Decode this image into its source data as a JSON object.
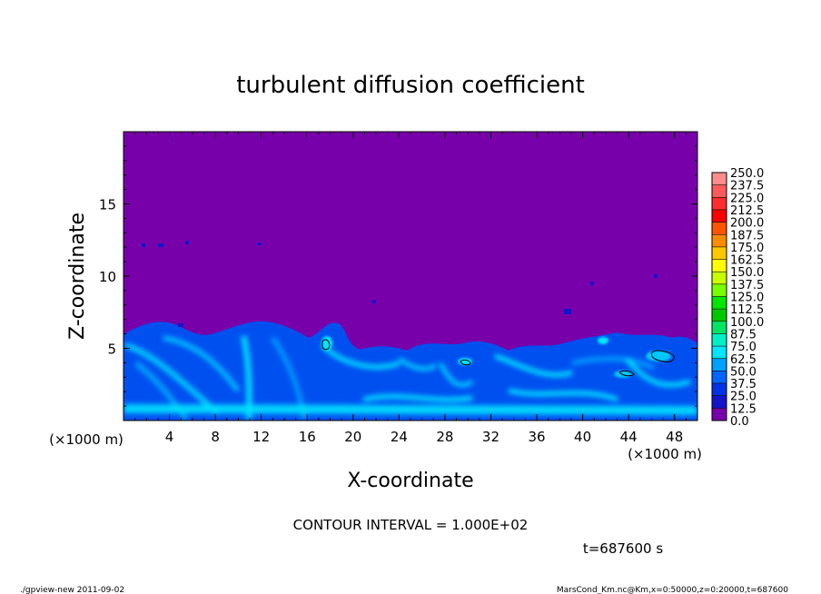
{
  "chart_data": {
    "type": "heatmap",
    "title": "turbulent diffusion coefficient",
    "xlabel": "X-coordinate",
    "ylabel": "Z-coordinate",
    "x_unit": "(×1000 m)",
    "y_unit": "(×1000 m)",
    "xlim": [
      0,
      50
    ],
    "ylim": [
      0,
      20
    ],
    "x_ticks": [
      "4",
      "8",
      "12",
      "16",
      "20",
      "24",
      "28",
      "32",
      "36",
      "40",
      "44",
      "48"
    ],
    "y_ticks": [
      "5",
      "10",
      "15"
    ],
    "colorbar": {
      "labels": [
        "250.0",
        "237.5",
        "225.0",
        "212.5",
        "200.0",
        "187.5",
        "175.0",
        "162.5",
        "150.0",
        "137.5",
        "125.0",
        "112.5",
        "100.0",
        "87.5",
        "75.0",
        "62.5",
        "50.0",
        "37.5",
        "25.0",
        "12.5",
        "0.0"
      ],
      "colors": [
        "#ff8c8c",
        "#ff5a5a",
        "#ff2d2d",
        "#ff0000",
        "#ff5500",
        "#ff8c00",
        "#ffc800",
        "#ffff00",
        "#c8ff00",
        "#78ff00",
        "#00e600",
        "#00c800",
        "#00e664",
        "#00f0c8",
        "#00e6ff",
        "#00a0ff",
        "#0064ff",
        "#0032e6",
        "#1414c8",
        "#7800aa"
      ]
    },
    "background_value": "0.0",
    "background_color": "#7800aa",
    "contour_interval": "CONTOUR INTERVAL = 1.000E+02",
    "time": "t=687600 s"
  },
  "footer": {
    "left": "./gpview-new  2011-09-02",
    "right": "MarsCond_Km.nc@Km,x=0:50000,z=0:20000,t=687600"
  }
}
